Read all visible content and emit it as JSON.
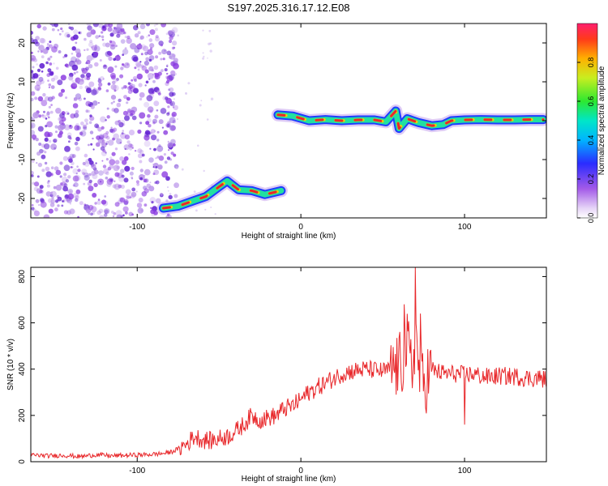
{
  "title": "S197.2025.316.17.12.E08",
  "colors": {
    "snr_line": "#e8282b",
    "ridge_low": "#1f3cff",
    "ridge_mid": "#22e0a0",
    "ridge_high": "#e8282b",
    "noise": "#8a3ae0"
  },
  "chart_data": [
    {
      "type": "heatmap",
      "title": "S197.2025.316.17.12.E08",
      "xlabel": "Height of straight line (km)",
      "ylabel": "Frequency (Hz)",
      "xlim": [
        -165,
        150
      ],
      "ylim": [
        -25,
        25
      ],
      "xticks": [
        -100,
        0,
        100
      ],
      "xtick_labels": [
        "-100",
        "0",
        "100"
      ],
      "yticks": [
        -20,
        -10,
        0,
        10,
        20
      ],
      "ytick_labels": [
        "-20",
        "-10",
        "0",
        "10",
        "20"
      ],
      "colorbar": {
        "label": "Normalized spectral amplitude",
        "range": [
          0,
          1
        ],
        "ticks": [
          0,
          0.2,
          0.4,
          0.6,
          0.8
        ],
        "tick_labels": [
          "0.0",
          "0.2",
          "0.4",
          "0.6",
          "0.8"
        ]
      },
      "noise_region_x": [
        -165,
        -82
      ],
      "ridge_segments": [
        {
          "x": [
            -84,
            -75,
            -65,
            -58,
            -50,
            -45,
            -38,
            -30,
            -22,
            -12
          ],
          "y": [
            -22.5,
            -22,
            -20.5,
            -19.5,
            -17,
            -15.5,
            -17.8,
            -18,
            -19,
            -18
          ]
        },
        {
          "x": [
            -14,
            -5,
            5,
            15,
            25,
            35,
            45,
            52,
            58,
            60,
            65,
            72,
            80,
            87,
            92,
            100,
            110,
            120,
            130,
            140,
            148
          ],
          "y": [
            1.5,
            1.2,
            0,
            0.3,
            0,
            0.2,
            0.2,
            -0.3,
            2.5,
            -2,
            0.5,
            -0.5,
            -1.3,
            -1,
            0,
            0.2,
            0.3,
            0.2,
            0.2,
            0.3,
            0.3
          ]
        }
      ]
    },
    {
      "type": "line",
      "xlabel": "Height of straight line (km)",
      "ylabel": "SNR (10 * v/v)",
      "xlim": [
        -165,
        150
      ],
      "ylim": [
        0,
        840
      ],
      "xticks": [
        -100,
        0,
        100
      ],
      "xtick_labels": [
        "-100",
        "0",
        "100"
      ],
      "yticks": [
        0,
        200,
        400,
        600,
        800
      ],
      "ytick_labels": [
        "0",
        "200",
        "400",
        "600",
        "800"
      ],
      "series": [
        {
          "name": "SNR",
          "x": [
            -165,
            -155,
            -145,
            -135,
            -125,
            -115,
            -105,
            -95,
            -85,
            -80,
            -75,
            -70,
            -65,
            -60,
            -55,
            -50,
            -45,
            -40,
            -35,
            -30,
            -25,
            -20,
            -15,
            -10,
            -5,
            0,
            5,
            10,
            15,
            20,
            25,
            30,
            35,
            40,
            45,
            50,
            55,
            60,
            62,
            65,
            68,
            70,
            72,
            75,
            78,
            80,
            85,
            90,
            95,
            100,
            105,
            110,
            115,
            120,
            125,
            130,
            135,
            140,
            145,
            150
          ],
          "y": [
            30,
            25,
            28,
            22,
            30,
            25,
            28,
            30,
            35,
            40,
            55,
            75,
            110,
            95,
            90,
            100,
            110,
            130,
            160,
            200,
            180,
            190,
            200,
            230,
            240,
            270,
            300,
            320,
            340,
            360,
            380,
            390,
            395,
            400,
            395,
            390,
            400,
            410,
            430,
            500,
            380,
            560,
            400,
            330,
            380,
            400,
            385,
            380,
            380,
            375,
            380,
            370,
            365,
            370,
            370,
            368,
            365,
            360,
            362,
            355
          ],
          "peaks": [
            {
              "x": 63,
              "y": 680
            },
            {
              "x": 70,
              "y": 840
            },
            {
              "x": 73,
              "y": 640
            },
            {
              "x": 100,
              "y": 160
            }
          ]
        }
      ]
    }
  ]
}
